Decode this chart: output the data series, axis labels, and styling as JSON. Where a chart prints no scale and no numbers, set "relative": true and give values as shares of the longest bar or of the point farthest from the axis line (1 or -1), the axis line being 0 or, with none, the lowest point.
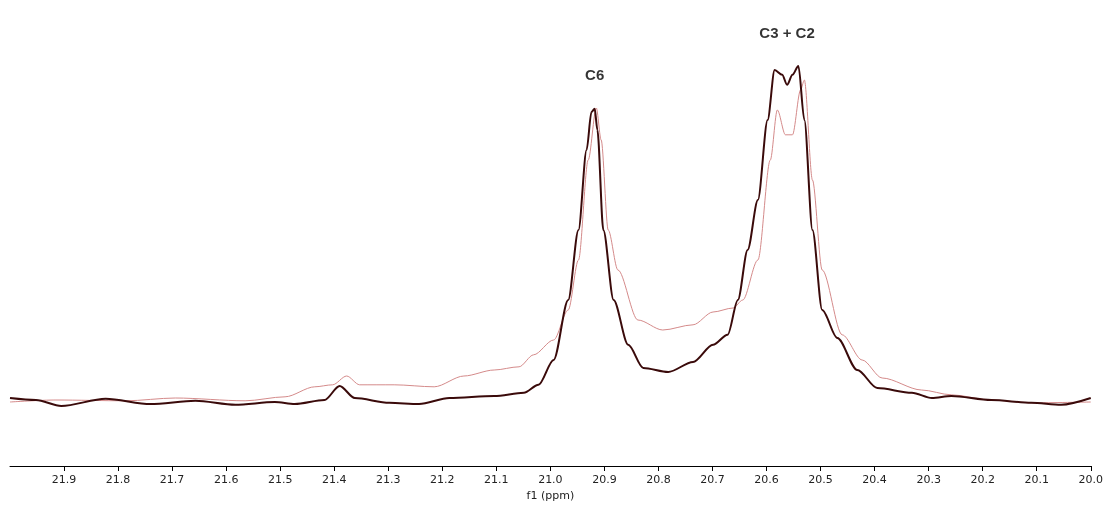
{
  "chart_data": {
    "type": "line",
    "relative": true,
    "xlabel": "f1 (ppm)",
    "xlim": [
      22.0,
      20.0
    ],
    "xticks": [
      21.9,
      21.8,
      21.7,
      21.6,
      21.5,
      21.4,
      21.3,
      21.2,
      21.1,
      {
        "value": 21,
        "label": "21.0"
      },
      20.9,
      20.8,
      20.7,
      20.6,
      20.5,
      20.4,
      20.3,
      20.2,
      20.1,
      {
        "value": 20,
        "label": "20.0"
      }
    ],
    "grid": false,
    "marker": "none",
    "line_style": "solid",
    "annotations": [
      {
        "text": "C6",
        "x": 20.918,
        "y": 0.893
      },
      {
        "text": "C3 + C2",
        "x": 20.562,
        "y": 0.953
      }
    ],
    "series": [
      {
        "color": "#d48a8a",
        "x": [
          22.0,
          21.915,
          21.786,
          21.694,
          21.565,
          21.491,
          21.436,
          21.403,
          21.377,
          21.353,
          21.289,
          21.215,
          21.16,
          21.104,
          21.058,
          21.031,
          20.994,
          20.967,
          20.948,
          20.93,
          20.915,
          20.906,
          20.893,
          20.875,
          20.838,
          20.792,
          20.736,
          20.699,
          20.662,
          20.644,
          20.616,
          20.593,
          20.58,
          20.565,
          20.552,
          20.537,
          20.53,
          20.515,
          20.497,
          20.46,
          20.423,
          20.386,
          20.313,
          20.258,
          20.184,
          20.11,
          20.0
        ],
        "values": [
          0.16,
          0.165,
          0.163,
          0.17,
          0.163,
          0.173,
          0.198,
          0.203,
          0.225,
          0.203,
          0.203,
          0.198,
          0.225,
          0.24,
          0.248,
          0.278,
          0.315,
          0.39,
          0.515,
          0.765,
          0.895,
          0.815,
          0.59,
          0.49,
          0.365,
          0.34,
          0.353,
          0.385,
          0.395,
          0.415,
          0.515,
          0.765,
          0.89,
          0.828,
          0.828,
          0.94,
          0.965,
          0.715,
          0.49,
          0.328,
          0.265,
          0.22,
          0.19,
          0.178,
          0.165,
          0.158,
          0.16
        ]
      },
      {
        "color": "#3a0a0a",
        "x": [
          22.0,
          21.952,
          21.905,
          21.823,
          21.74,
          21.657,
          21.583,
          21.51,
          21.473,
          21.418,
          21.39,
          21.362,
          21.298,
          21.243,
          21.187,
          21.104,
          21.049,
          21.022,
          20.994,
          20.967,
          20.948,
          20.933,
          20.924,
          20.918,
          20.913,
          20.902,
          20.883,
          20.856,
          20.828,
          20.782,
          20.736,
          20.699,
          20.672,
          20.653,
          20.635,
          20.616,
          20.598,
          20.585,
          20.571,
          20.562,
          20.552,
          20.541,
          20.53,
          20.515,
          20.497,
          20.469,
          20.432,
          20.395,
          20.331,
          20.294,
          20.258,
          20.184,
          20.11,
          20.055,
          20.0
        ],
        "values": [
          0.17,
          0.165,
          0.15,
          0.168,
          0.155,
          0.163,
          0.153,
          0.16,
          0.155,
          0.165,
          0.2,
          0.17,
          0.158,
          0.155,
          0.17,
          0.175,
          0.183,
          0.203,
          0.265,
          0.415,
          0.59,
          0.79,
          0.885,
          0.893,
          0.84,
          0.59,
          0.415,
          0.303,
          0.245,
          0.235,
          0.26,
          0.303,
          0.328,
          0.415,
          0.54,
          0.665,
          0.865,
          0.99,
          0.978,
          0.953,
          0.978,
          1.0,
          0.865,
          0.59,
          0.39,
          0.32,
          0.24,
          0.195,
          0.183,
          0.17,
          0.175,
          0.165,
          0.158,
          0.153,
          0.17
        ]
      }
    ]
  }
}
